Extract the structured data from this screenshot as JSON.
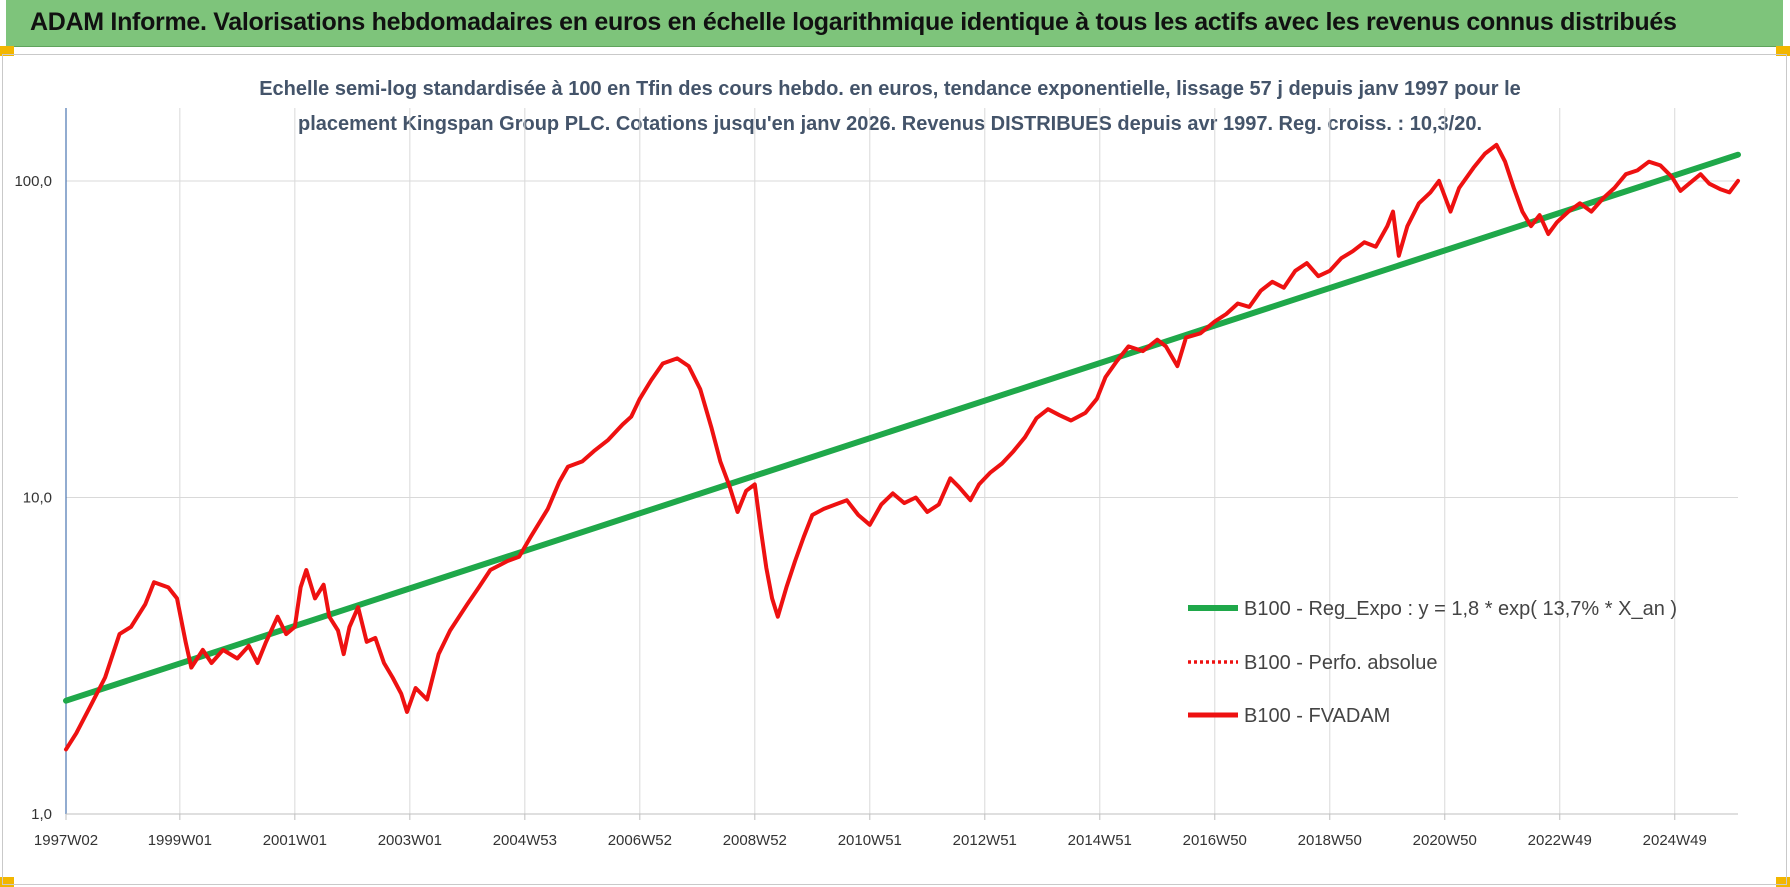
{
  "header": {
    "title": "ADAM Informe. Valorisations hebdomadaires en euros en échelle logarithmique identique à tous les actifs avec les revenus connus distribués"
  },
  "colors": {
    "banner": "#7ec47b",
    "corner_accent": "#f2b600",
    "trend": "#1fa84a",
    "fvadam": "#ee1111",
    "subtitle": "#44546a",
    "grid": "#d9d9d9"
  },
  "chart_data": {
    "type": "line",
    "subtitle_line1": "Echelle semi-log standardisée à 100 en Tfin des cours hebdo. en euros, tendance exponentielle, lissage 57 j depuis janv 1997 pour le",
    "subtitle_line2": "placement Kingspan Group PLC. Cotations jusqu'en janv 2026.  Revenus DISTRIBUES depuis avr 1997. Reg. croiss. : 10,3/20.",
    "y_scale": "log",
    "ylim": [
      1,
      170
    ],
    "y_ticks": [
      {
        "value": 1,
        "label": "1,0"
      },
      {
        "value": 10,
        "label": "10,0"
      },
      {
        "value": 100,
        "label": "100,0"
      }
    ],
    "xlim": [
      1997.02,
      2026.1
    ],
    "x_ticks": [
      {
        "x": 1997.02,
        "label": "1997W02"
      },
      {
        "x": 1999.0,
        "label": "1999W01"
      },
      {
        "x": 2001.0,
        "label": "2001W01"
      },
      {
        "x": 2003.0,
        "label": "2003W01"
      },
      {
        "x": 2005.0,
        "label": "2004W53"
      },
      {
        "x": 2007.0,
        "label": "2006W52"
      },
      {
        "x": 2009.0,
        "label": "2008W52"
      },
      {
        "x": 2011.0,
        "label": "2010W51"
      },
      {
        "x": 2013.0,
        "label": "2012W51"
      },
      {
        "x": 2015.0,
        "label": "2014W51"
      },
      {
        "x": 2017.0,
        "label": "2016W50"
      },
      {
        "x": 2019.0,
        "label": "2018W50"
      },
      {
        "x": 2021.0,
        "label": "2020W50"
      },
      {
        "x": 2023.0,
        "label": "2022W49"
      },
      {
        "x": 2025.0,
        "label": "2024W49"
      }
    ],
    "grid": true,
    "legend_position": "right",
    "series": [
      {
        "name": "B100 - Reg_Expo : y = 1,8 * exp( 13,7% *  X_an )",
        "style": "solid-thick",
        "color": "#1fa84a",
        "points": [
          [
            1997.02,
            2.28
          ],
          [
            2026.1,
            121
          ]
        ]
      },
      {
        "name": "B100 - Perfo. absolue",
        "style": "dotted",
        "color": "#ee1111",
        "points": []
      },
      {
        "name": "B100 - FVADAM",
        "style": "solid",
        "color": "#ee1111",
        "points": [
          [
            1997.02,
            1.6
          ],
          [
            1997.2,
            1.8
          ],
          [
            1997.45,
            2.2
          ],
          [
            1997.7,
            2.7
          ],
          [
            1997.95,
            3.7
          ],
          [
            1998.15,
            3.9
          ],
          [
            1998.4,
            4.6
          ],
          [
            1998.55,
            5.4
          ],
          [
            1998.8,
            5.2
          ],
          [
            1998.95,
            4.8
          ],
          [
            1999.1,
            3.5
          ],
          [
            1999.2,
            2.9
          ],
          [
            1999.4,
            3.3
          ],
          [
            1999.55,
            3.0
          ],
          [
            1999.75,
            3.3
          ],
          [
            2000.0,
            3.1
          ],
          [
            2000.2,
            3.4
          ],
          [
            2000.35,
            3.0
          ],
          [
            2000.5,
            3.5
          ],
          [
            2000.7,
            4.2
          ],
          [
            2000.85,
            3.7
          ],
          [
            2001.0,
            3.9
          ],
          [
            2001.1,
            5.2
          ],
          [
            2001.2,
            5.9
          ],
          [
            2001.35,
            4.8
          ],
          [
            2001.5,
            5.3
          ],
          [
            2001.6,
            4.2
          ],
          [
            2001.75,
            3.8
          ],
          [
            2001.85,
            3.2
          ],
          [
            2001.95,
            3.9
          ],
          [
            2002.1,
            4.5
          ],
          [
            2002.25,
            3.5
          ],
          [
            2002.4,
            3.6
          ],
          [
            2002.55,
            3.0
          ],
          [
            2002.7,
            2.7
          ],
          [
            2002.85,
            2.4
          ],
          [
            2002.95,
            2.1
          ],
          [
            2003.1,
            2.5
          ],
          [
            2003.3,
            2.3
          ],
          [
            2003.5,
            3.2
          ],
          [
            2003.7,
            3.8
          ],
          [
            2004.0,
            4.6
          ],
          [
            2004.2,
            5.2
          ],
          [
            2004.4,
            5.9
          ],
          [
            2004.7,
            6.3
          ],
          [
            2004.9,
            6.5
          ],
          [
            2005.1,
            7.5
          ],
          [
            2005.4,
            9.2
          ],
          [
            2005.6,
            11.2
          ],
          [
            2005.75,
            12.5
          ],
          [
            2006.0,
            13.0
          ],
          [
            2006.2,
            14.0
          ],
          [
            2006.45,
            15.2
          ],
          [
            2006.7,
            17.0
          ],
          [
            2006.85,
            18.0
          ],
          [
            2007.0,
            20.5
          ],
          [
            2007.2,
            23.5
          ],
          [
            2007.4,
            26.5
          ],
          [
            2007.65,
            27.5
          ],
          [
            2007.85,
            26.0
          ],
          [
            2008.05,
            22.0
          ],
          [
            2008.25,
            16.5
          ],
          [
            2008.4,
            13.0
          ],
          [
            2008.55,
            11.0
          ],
          [
            2008.7,
            9.0
          ],
          [
            2008.85,
            10.5
          ],
          [
            2009.0,
            11.0
          ],
          [
            2009.1,
            8.0
          ],
          [
            2009.2,
            6.0
          ],
          [
            2009.3,
            4.8
          ],
          [
            2009.4,
            4.2
          ],
          [
            2009.55,
            5.2
          ],
          [
            2009.7,
            6.3
          ],
          [
            2009.85,
            7.5
          ],
          [
            2010.0,
            8.8
          ],
          [
            2010.2,
            9.2
          ],
          [
            2010.4,
            9.5
          ],
          [
            2010.6,
            9.8
          ],
          [
            2010.8,
            8.8
          ],
          [
            2011.0,
            8.2
          ],
          [
            2011.2,
            9.5
          ],
          [
            2011.4,
            10.3
          ],
          [
            2011.6,
            9.6
          ],
          [
            2011.8,
            10.0
          ],
          [
            2012.0,
            9.0
          ],
          [
            2012.2,
            9.5
          ],
          [
            2012.4,
            11.5
          ],
          [
            2012.55,
            10.8
          ],
          [
            2012.75,
            9.8
          ],
          [
            2012.9,
            11.0
          ],
          [
            2013.1,
            12.0
          ],
          [
            2013.3,
            12.8
          ],
          [
            2013.5,
            14.0
          ],
          [
            2013.7,
            15.5
          ],
          [
            2013.9,
            17.8
          ],
          [
            2014.1,
            19.0
          ],
          [
            2014.3,
            18.2
          ],
          [
            2014.5,
            17.5
          ],
          [
            2014.75,
            18.5
          ],
          [
            2014.95,
            20.5
          ],
          [
            2015.1,
            24.0
          ],
          [
            2015.3,
            27.0
          ],
          [
            2015.5,
            30.0
          ],
          [
            2015.75,
            29.0
          ],
          [
            2016.0,
            31.5
          ],
          [
            2016.15,
            30.0
          ],
          [
            2016.35,
            26.0
          ],
          [
            2016.5,
            32.0
          ],
          [
            2016.75,
            33.0
          ],
          [
            2017.0,
            36.0
          ],
          [
            2017.2,
            38.0
          ],
          [
            2017.4,
            41.0
          ],
          [
            2017.6,
            40.0
          ],
          [
            2017.8,
            45.0
          ],
          [
            2018.0,
            48.0
          ],
          [
            2018.2,
            46.0
          ],
          [
            2018.4,
            52.0
          ],
          [
            2018.6,
            55.0
          ],
          [
            2018.8,
            50.0
          ],
          [
            2019.0,
            52.0
          ],
          [
            2019.2,
            57.0
          ],
          [
            2019.4,
            60.0
          ],
          [
            2019.6,
            64.0
          ],
          [
            2019.8,
            62.0
          ],
          [
            2020.0,
            72.0
          ],
          [
            2020.1,
            80.0
          ],
          [
            2020.2,
            58.0
          ],
          [
            2020.35,
            72.0
          ],
          [
            2020.55,
            85.0
          ],
          [
            2020.75,
            92.0
          ],
          [
            2020.9,
            100.0
          ],
          [
            2021.1,
            80.0
          ],
          [
            2021.25,
            95.0
          ],
          [
            2021.5,
            110.0
          ],
          [
            2021.7,
            122.0
          ],
          [
            2021.9,
            130.0
          ],
          [
            2022.05,
            115.0
          ],
          [
            2022.2,
            95.0
          ],
          [
            2022.35,
            80.0
          ],
          [
            2022.5,
            72.0
          ],
          [
            2022.65,
            78.0
          ],
          [
            2022.8,
            68.0
          ],
          [
            2022.95,
            74.0
          ],
          [
            2023.15,
            80.0
          ],
          [
            2023.35,
            85.0
          ],
          [
            2023.55,
            80.0
          ],
          [
            2023.75,
            88.0
          ],
          [
            2023.95,
            95.0
          ],
          [
            2024.15,
            105.0
          ],
          [
            2024.35,
            108.0
          ],
          [
            2024.55,
            115.0
          ],
          [
            2024.75,
            112.0
          ],
          [
            2024.95,
            103.0
          ],
          [
            2025.1,
            93.0
          ],
          [
            2025.25,
            98.0
          ],
          [
            2025.45,
            105.0
          ],
          [
            2025.6,
            98.0
          ],
          [
            2025.8,
            94.0
          ],
          [
            2025.95,
            92.0
          ],
          [
            2026.1,
            100.0
          ]
        ]
      }
    ]
  }
}
